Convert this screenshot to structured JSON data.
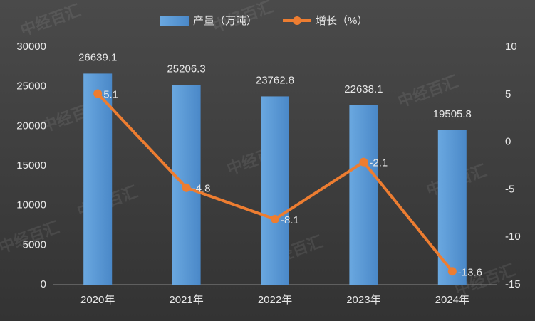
{
  "chart_data": {
    "type": "bar",
    "watermark": "中经百汇",
    "categories": [
      "2020年",
      "2021年",
      "2022年",
      "2023年",
      "2024年"
    ],
    "series": [
      {
        "name": "产量（万吨）",
        "type": "bar",
        "color": "#5b9bd5",
        "values": [
          26639.1,
          25206.3,
          23762.8,
          22638.1,
          19505.8
        ]
      },
      {
        "name": "增长（%）",
        "type": "line",
        "color": "#ed7d31",
        "axis": "y2",
        "values": [
          5.1,
          -4.8,
          -8.1,
          -2.1,
          -13.6
        ]
      }
    ],
    "ylim": [
      0,
      30000
    ],
    "yticks": [
      0,
      5000,
      10000,
      15000,
      20000,
      25000,
      30000
    ],
    "y2lim": [
      -15,
      10
    ],
    "y2ticks": [
      -15,
      -10,
      -5,
      0,
      5,
      10
    ],
    "grid": false
  }
}
